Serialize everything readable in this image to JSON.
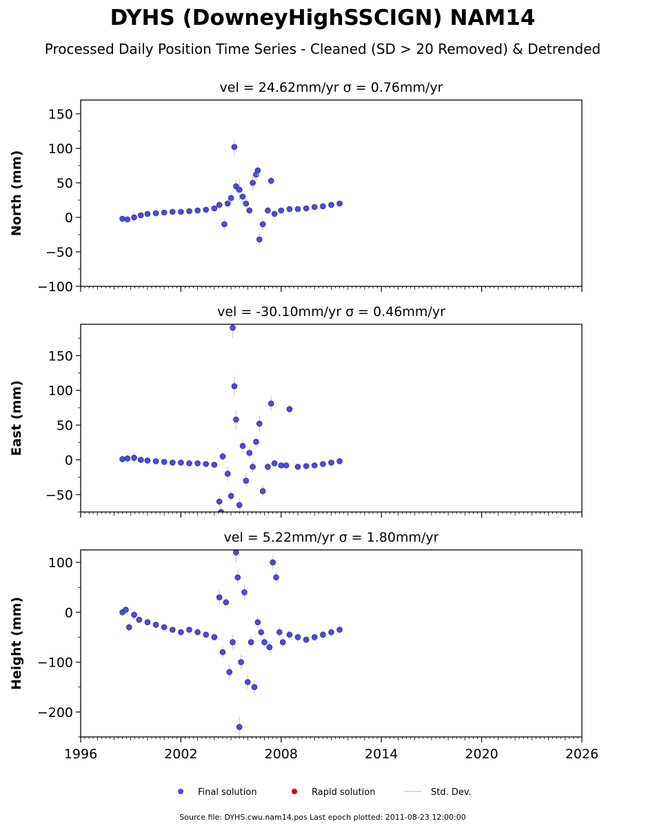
{
  "header": {
    "title": "DYHS (DowneyHighSSCIGN) NAM14",
    "subtitle": "Processed Daily Position Time Series - Cleaned (SD > 20 Removed) & Detrended"
  },
  "legend": {
    "placement": "bottom-center",
    "items": [
      {
        "label": "Final solution",
        "color": "#4a4ae8"
      },
      {
        "label": "Rapid solution",
        "color": "#e00000"
      },
      {
        "label": "Std. Dev.",
        "color": "#cccccc"
      }
    ]
  },
  "footer": {
    "text": "Source file: DYHS.cwu.nam14.pos  Last epoch plotted: 2011-08-23 12:00:00"
  },
  "chart_data": [
    {
      "type": "scatter",
      "title": "vel = 24.62mm/yr   σ = 0.76mm/yr",
      "ylabel": "North (mm)",
      "xlim": [
        1996,
        2026
      ],
      "ylim": [
        -100,
        170
      ],
      "xticks": [
        1996,
        2002,
        2008,
        2014,
        2020,
        2026
      ],
      "yticks": [
        -100,
        -50,
        0,
        50,
        100,
        150
      ],
      "ytick_labels": [
        "−100",
        "−50",
        "0",
        "50",
        "100",
        "150"
      ],
      "series": [
        {
          "name": "Final solution",
          "x": [
            1998.5,
            1998.8,
            1999.2,
            1999.6,
            2000.0,
            2000.5,
            2001.0,
            2001.5,
            2002.0,
            2002.5,
            2003.0,
            2003.5,
            2004.0,
            2004.3,
            2004.6,
            2004.8,
            2005.0,
            2005.2,
            2005.3,
            2005.5,
            2005.7,
            2005.9,
            2006.1,
            2006.3,
            2006.5,
            2006.6,
            2006.7,
            2006.9,
            2007.2,
            2007.4,
            2007.6,
            2008.0,
            2008.5,
            2009.0,
            2009.5,
            2010.0,
            2010.5,
            2011.0,
            2011.5
          ],
          "y": [
            -2,
            -3,
            0,
            3,
            5,
            6,
            7,
            8,
            8,
            9,
            10,
            11,
            13,
            18,
            -10,
            20,
            28,
            102,
            45,
            40,
            30,
            20,
            10,
            50,
            62,
            68,
            -32,
            -10,
            10,
            53,
            5,
            10,
            12,
            12,
            13,
            15,
            16,
            18,
            20
          ],
          "sigma": [
            3,
            3,
            8,
            4,
            3,
            3,
            3,
            3,
            3,
            3,
            3,
            3,
            4,
            6,
            8,
            6,
            8,
            12,
            10,
            15,
            10,
            8,
            6,
            12,
            10,
            8,
            8,
            8,
            5,
            6,
            4,
            4,
            4,
            4,
            4,
            4,
            4,
            4,
            4
          ]
        }
      ]
    },
    {
      "type": "scatter",
      "title": "vel = -30.10mm/yr   σ = 0.46mm/yr",
      "ylabel": "East (mm)",
      "xlim": [
        1996,
        2026
      ],
      "ylim": [
        -75,
        195
      ],
      "xticks": [
        1996,
        2002,
        2008,
        2014,
        2020,
        2026
      ],
      "yticks": [
        -50,
        0,
        50,
        100,
        150
      ],
      "ytick_labels": [
        "−50",
        "0",
        "50",
        "100",
        "150"
      ],
      "series": [
        {
          "name": "Final solution",
          "x": [
            1998.5,
            1998.8,
            1999.2,
            1999.6,
            2000.0,
            2000.5,
            2001.0,
            2001.5,
            2002.0,
            2002.5,
            2003.0,
            2003.5,
            2004.0,
            2004.3,
            2004.4,
            2004.5,
            2004.8,
            2005.0,
            2005.1,
            2005.2,
            2005.3,
            2005.5,
            2005.7,
            2005.9,
            2006.1,
            2006.3,
            2006.5,
            2006.7,
            2006.9,
            2007.2,
            2007.4,
            2007.6,
            2008.0,
            2008.3,
            2008.5,
            2009.0,
            2009.5,
            2010.0,
            2010.5,
            2011.0,
            2011.5
          ],
          "y": [
            1,
            2,
            3,
            0,
            -1,
            -2,
            -3,
            -4,
            -4,
            -5,
            -5,
            -6,
            -7,
            -60,
            -75,
            5,
            -20,
            -52,
            190,
            106,
            58,
            -65,
            20,
            -30,
            10,
            -10,
            26,
            52,
            -45,
            -10,
            81,
            -5,
            -8,
            -8,
            73,
            -10,
            -9,
            -8,
            -6,
            -4,
            -2
          ],
          "sigma": [
            3,
            3,
            8,
            4,
            3,
            3,
            3,
            3,
            3,
            3,
            3,
            3,
            4,
            8,
            8,
            6,
            10,
            8,
            15,
            15,
            15,
            10,
            10,
            10,
            8,
            8,
            8,
            12,
            8,
            6,
            10,
            4,
            4,
            4,
            6,
            4,
            4,
            4,
            4,
            4,
            4
          ]
        }
      ]
    },
    {
      "type": "scatter",
      "title": "vel = 5.22mm/yr   σ = 1.80mm/yr",
      "ylabel": "Height (mm)",
      "xlim": [
        1996,
        2026
      ],
      "ylim": [
        -250,
        125
      ],
      "xticks": [
        1996,
        2002,
        2008,
        2014,
        2020,
        2026
      ],
      "xtick_labels": [
        "1996",
        "2002",
        "2008",
        "2014",
        "2020",
        "2026"
      ],
      "yticks": [
        -200,
        -100,
        0,
        100
      ],
      "ytick_labels": [
        "−200",
        "−100",
        "0",
        "100"
      ],
      "series": [
        {
          "name": "Final solution",
          "x": [
            1998.5,
            1998.7,
            1998.9,
            1999.2,
            1999.5,
            2000.0,
            2000.5,
            2001.0,
            2001.5,
            2002.0,
            2002.5,
            2003.0,
            2003.5,
            2004.0,
            2004.3,
            2004.5,
            2004.7,
            2004.9,
            2005.1,
            2005.3,
            2005.4,
            2005.5,
            2005.6,
            2005.8,
            2006.0,
            2006.2,
            2006.4,
            2006.6,
            2006.8,
            2007.0,
            2007.3,
            2007.5,
            2007.7,
            2007.9,
            2008.1,
            2008.5,
            2009.0,
            2009.5,
            2010.0,
            2010.5,
            2011.0,
            2011.5
          ],
          "y": [
            0,
            5,
            -30,
            -5,
            -15,
            -20,
            -25,
            -30,
            -35,
            -40,
            -35,
            -40,
            -45,
            -50,
            30,
            -80,
            20,
            -120,
            -60,
            120,
            70,
            -230,
            -100,
            40,
            -140,
            -60,
            -150,
            -20,
            -40,
            -60,
            -70,
            100,
            70,
            -40,
            -60,
            -45,
            -50,
            -55,
            -50,
            -45,
            -40,
            -35
          ],
          "sigma": [
            6,
            6,
            8,
            10,
            6,
            6,
            6,
            6,
            6,
            6,
            6,
            6,
            6,
            8,
            15,
            12,
            12,
            15,
            15,
            20,
            15,
            20,
            15,
            15,
            15,
            12,
            15,
            12,
            10,
            10,
            12,
            15,
            12,
            10,
            10,
            8,
            8,
            8,
            8,
            8,
            8,
            8
          ]
        }
      ]
    }
  ]
}
